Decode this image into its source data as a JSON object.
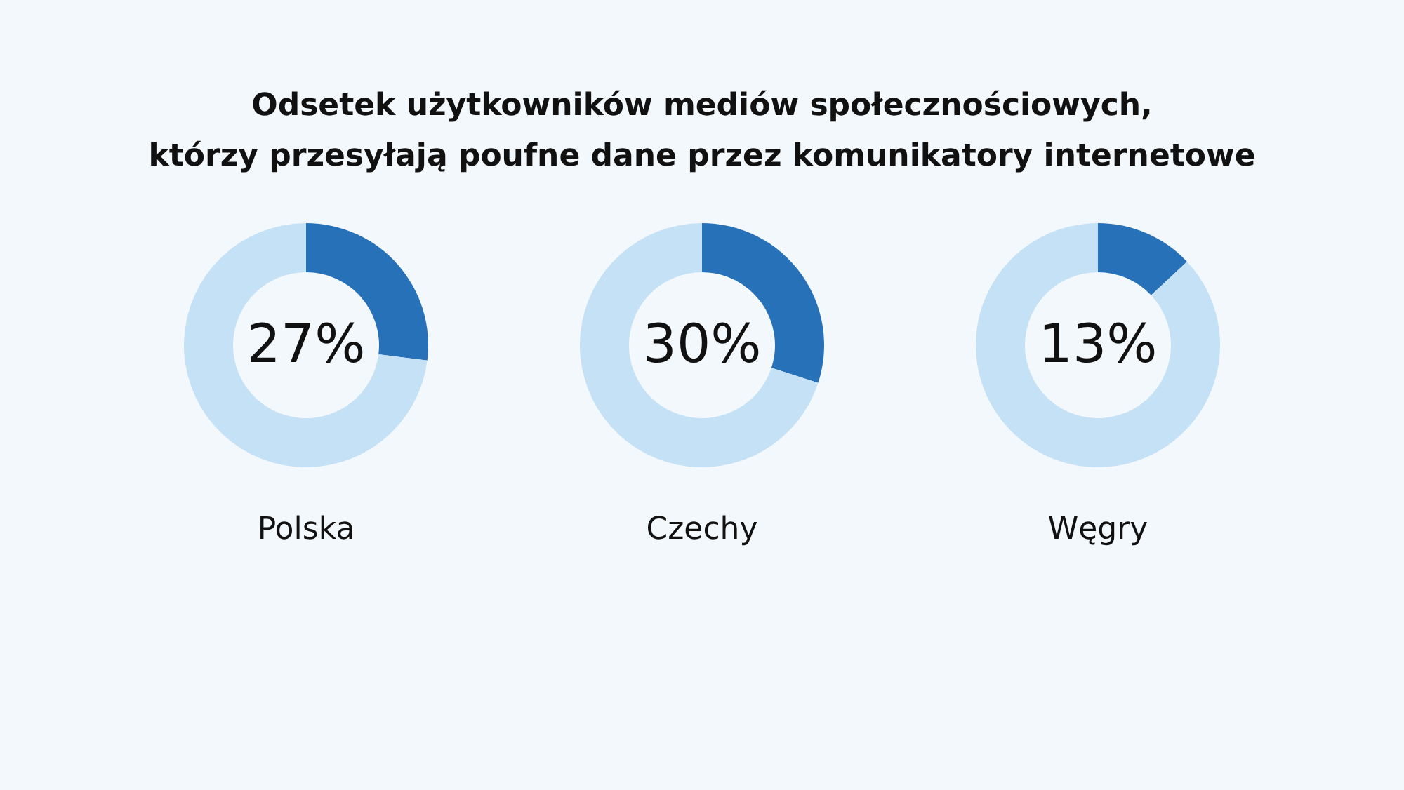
{
  "chart_data": [
    {
      "type": "donut",
      "title": "Odsetek użytkowników mediów społecznościowych,\nktórzy przesyłają poufne dane przez komunikatory internetowe",
      "xlabel": "Polska",
      "categories": [
        null,
        null
      ],
      "values": [
        27,
        73
      ],
      "colors": [
        "#2771b8",
        "#c5e1f5"
      ],
      "value_labels": [
        "27%",
        null
      ],
      "legend": false
    },
    {
      "type": "donut",
      "xlabel": "Czechy",
      "categories": [
        null,
        null
      ],
      "values": [
        30,
        70
      ],
      "colors": [
        "#2771b8",
        "#c5e1f5"
      ],
      "value_labels": [
        "30%",
        null
      ],
      "legend": false
    },
    {
      "type": "donut",
      "xlabel": "Węgry",
      "categories": [
        null,
        null
      ],
      "values": [
        13,
        87
      ],
      "colors": [
        "#2771b8",
        "#c5e1f5"
      ],
      "value_labels": [
        "13%",
        null
      ],
      "legend": false
    }
  ]
}
